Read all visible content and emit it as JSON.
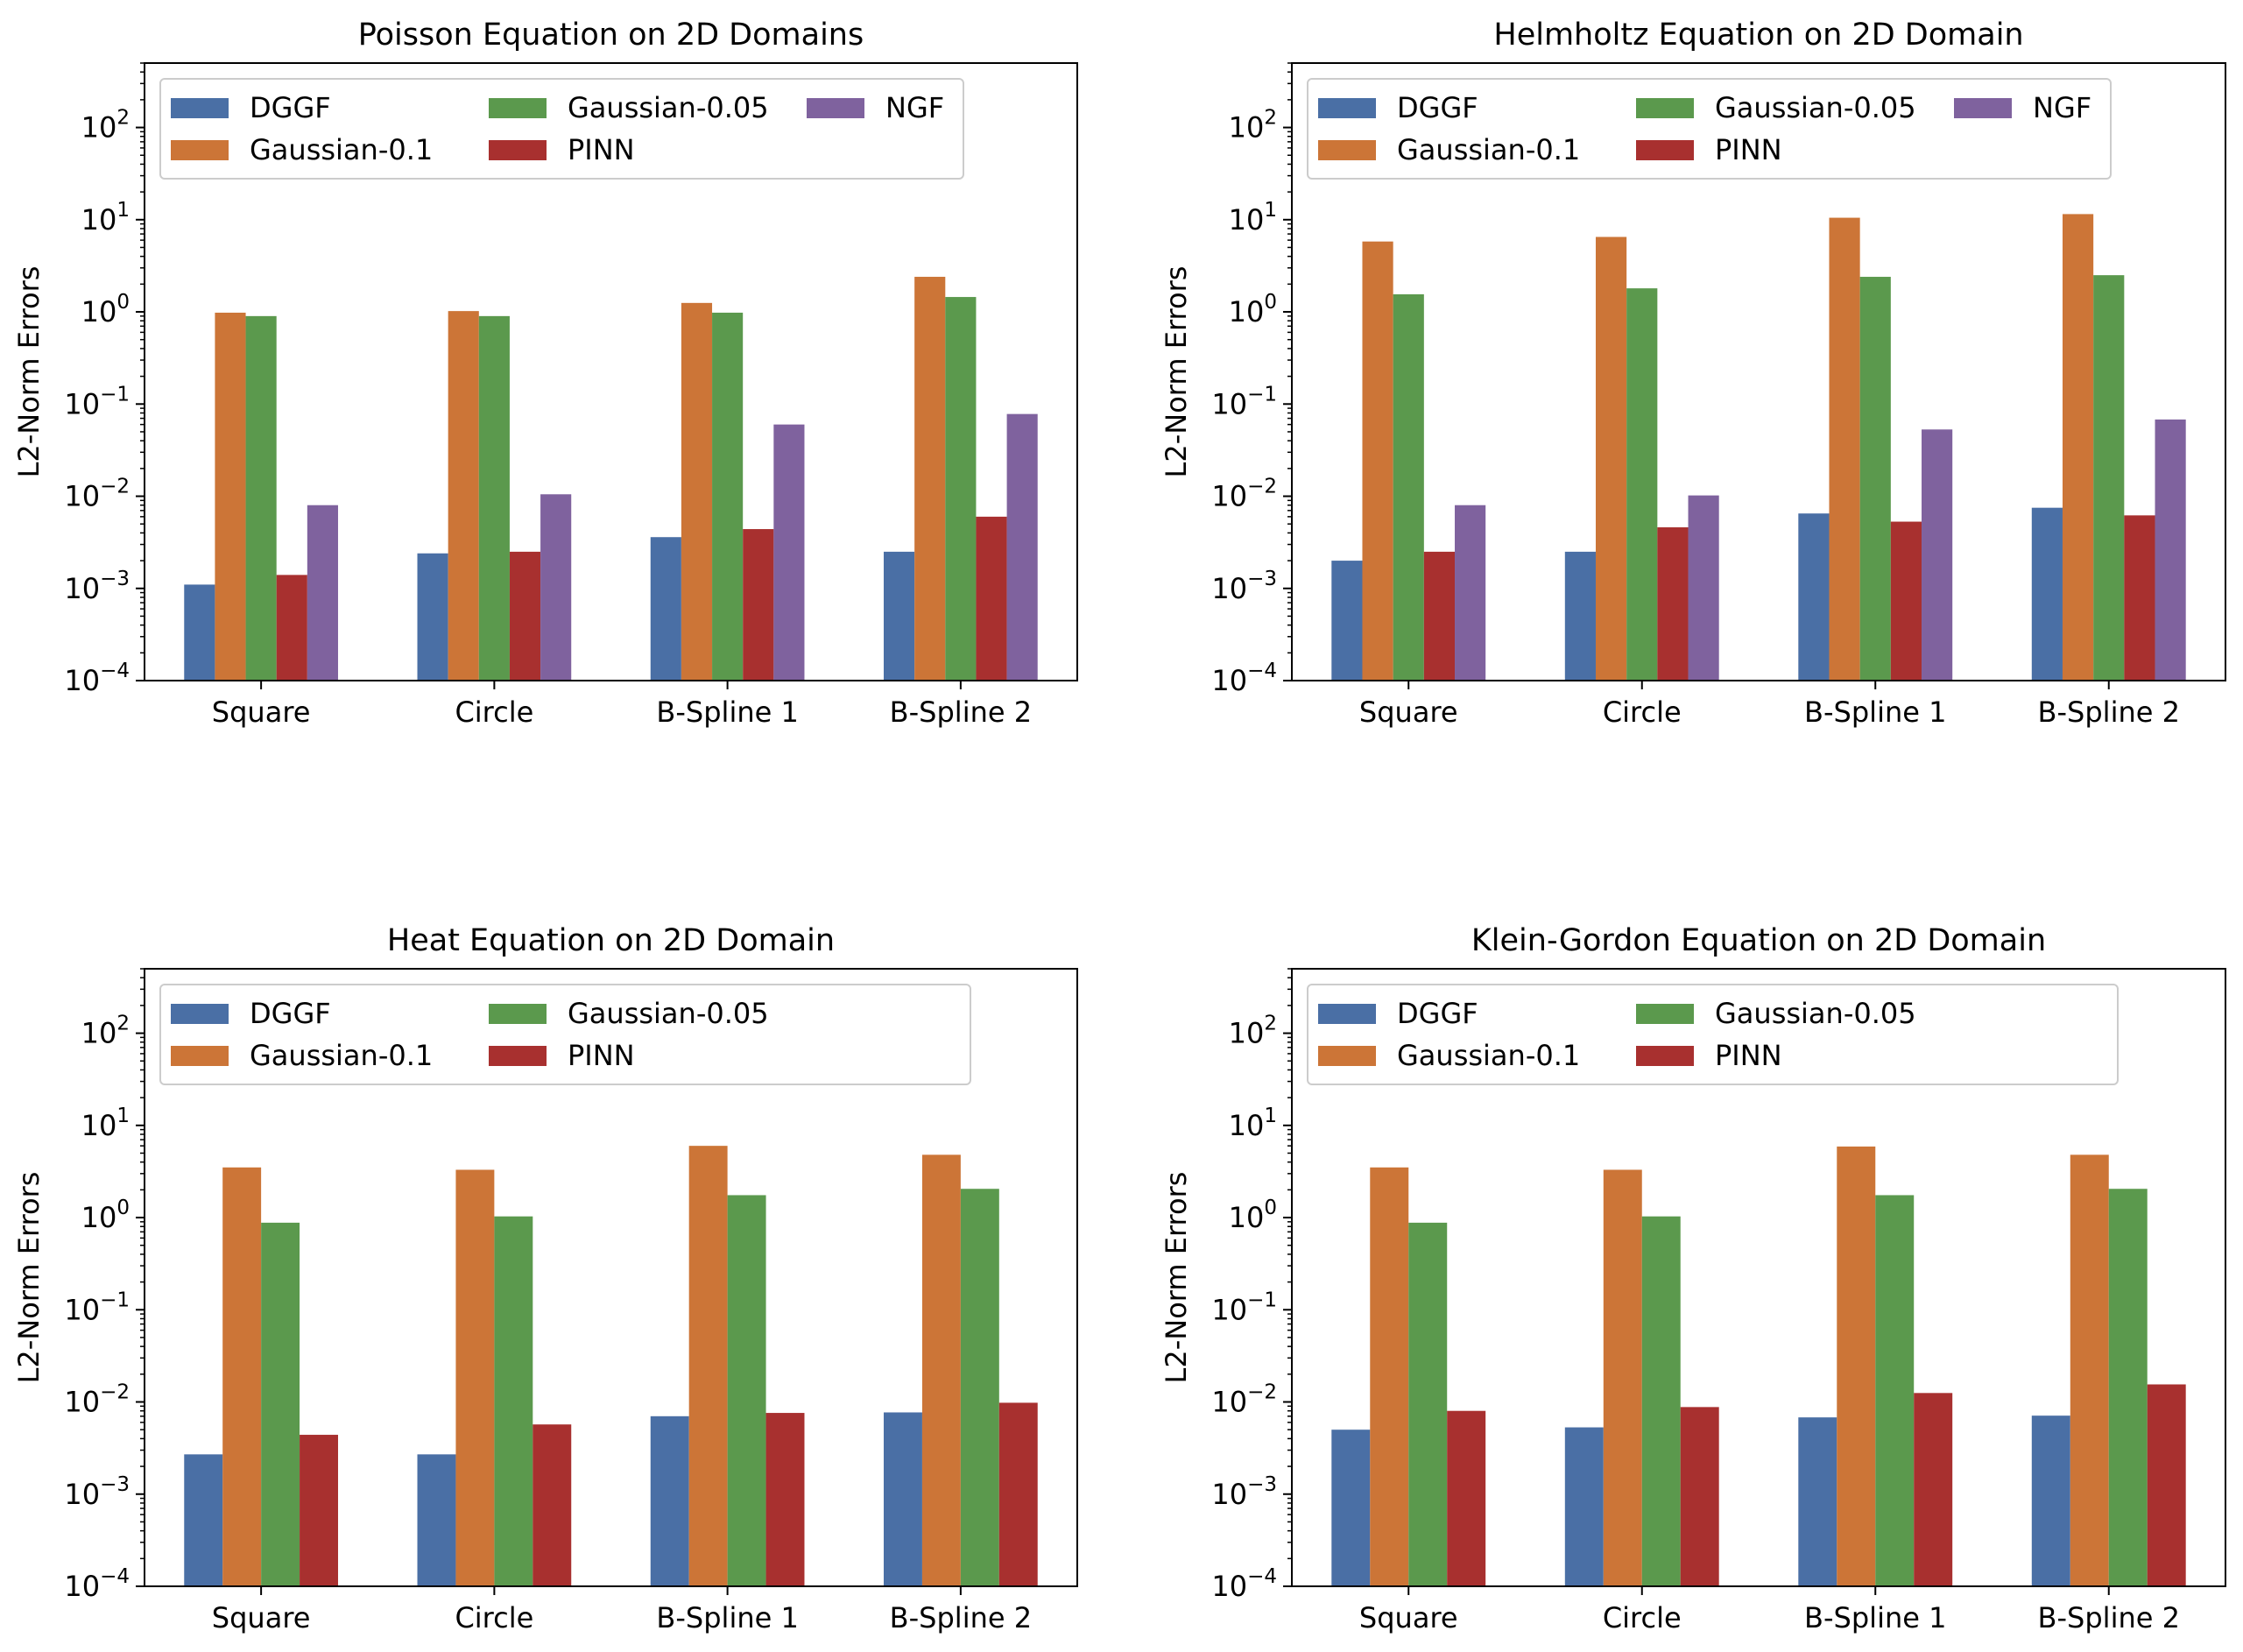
{
  "figure": {
    "background": "#ffffff"
  },
  "chart_data": [
    {
      "type": "bar",
      "scale": "log",
      "title": "Poisson Equation on 2D Domains",
      "xlabel": "",
      "ylabel": "L2-Norm Errors",
      "ylim": [
        0.0001,
        500
      ],
      "yticks": [
        -4,
        -3,
        -2,
        -1,
        0,
        1,
        2
      ],
      "legend_location": "upper-left",
      "legend_columns": 3,
      "categories": [
        "Square",
        "Circle",
        "B-Spline 1",
        "B-Spline 2"
      ],
      "series": [
        {
          "name": "DGGF",
          "color": "#4a6fa5",
          "values": [
            0.0011,
            0.0024,
            0.0036,
            0.0025
          ]
        },
        {
          "name": "Gaussian-0.1",
          "color": "#cc7537",
          "values": [
            0.98,
            1.02,
            1.25,
            2.4
          ]
        },
        {
          "name": "Gaussian-0.05",
          "color": "#5b994d",
          "values": [
            0.9,
            0.9,
            0.98,
            1.45
          ]
        },
        {
          "name": "PINN",
          "color": "#a8302f",
          "values": [
            0.0014,
            0.0025,
            0.0044,
            0.006
          ]
        },
        {
          "name": "NGF",
          "color": "#7f629e",
          "values": [
            0.008,
            0.0105,
            0.06,
            0.078
          ]
        }
      ]
    },
    {
      "type": "bar",
      "scale": "log",
      "title": "Helmholtz Equation on 2D Domain",
      "xlabel": "",
      "ylabel": "L2-Norm Errors",
      "ylim": [
        0.0001,
        500
      ],
      "yticks": [
        -4,
        -3,
        -2,
        -1,
        0,
        1,
        2
      ],
      "legend_location": "upper-left",
      "legend_columns": 3,
      "categories": [
        "Square",
        "Circle",
        "B-Spline 1",
        "B-Spline 2"
      ],
      "series": [
        {
          "name": "DGGF",
          "color": "#4a6fa5",
          "values": [
            0.002,
            0.0025,
            0.0065,
            0.0075
          ]
        },
        {
          "name": "Gaussian-0.1",
          "color": "#cc7537",
          "values": [
            5.8,
            6.5,
            10.5,
            11.5
          ]
        },
        {
          "name": "Gaussian-0.05",
          "color": "#5b994d",
          "values": [
            1.55,
            1.8,
            2.4,
            2.5
          ]
        },
        {
          "name": "PINN",
          "color": "#a8302f",
          "values": [
            0.0025,
            0.0046,
            0.0053,
            0.0062
          ]
        },
        {
          "name": "NGF",
          "color": "#7f629e",
          "values": [
            0.008,
            0.0102,
            0.053,
            0.068
          ]
        }
      ]
    },
    {
      "type": "bar",
      "scale": "log",
      "title": "Heat Equation on 2D Domain",
      "xlabel": "",
      "ylabel": "L2-Norm Errors",
      "ylim": [
        0.0001,
        500
      ],
      "yticks": [
        -4,
        -3,
        -2,
        -1,
        0,
        1,
        2
      ],
      "legend_location": "upper-left",
      "legend_columns": 3,
      "categories": [
        "Square",
        "Circle",
        "B-Spline 1",
        "B-Spline 2"
      ],
      "series": [
        {
          "name": "DGGF",
          "color": "#4a6fa5",
          "values": [
            0.0027,
            0.0027,
            0.007,
            0.0077
          ]
        },
        {
          "name": "Gaussian-0.1",
          "color": "#cc7537",
          "values": [
            3.5,
            3.3,
            6.0,
            4.8
          ]
        },
        {
          "name": "Gaussian-0.05",
          "color": "#5b994d",
          "values": [
            0.88,
            1.03,
            1.75,
            2.05
          ]
        },
        {
          "name": "PINN",
          "color": "#a8302f",
          "values": [
            0.0044,
            0.0057,
            0.0076,
            0.0098
          ]
        }
      ]
    },
    {
      "type": "bar",
      "scale": "log",
      "title": "Klein-Gordon Equation on 2D Domain",
      "xlabel": "",
      "ylabel": "L2-Norm Errors",
      "ylim": [
        0.0001,
        500
      ],
      "yticks": [
        -4,
        -3,
        -2,
        -1,
        0,
        1,
        2
      ],
      "legend_location": "upper-left",
      "legend_columns": 3,
      "categories": [
        "Square",
        "Circle",
        "B-Spline 1",
        "B-Spline 2"
      ],
      "series": [
        {
          "name": "DGGF",
          "color": "#4a6fa5",
          "values": [
            0.005,
            0.0053,
            0.0068,
            0.0071
          ]
        },
        {
          "name": "Gaussian-0.1",
          "color": "#cc7537",
          "values": [
            3.5,
            3.3,
            5.9,
            4.8
          ]
        },
        {
          "name": "Gaussian-0.05",
          "color": "#5b994d",
          "values": [
            0.88,
            1.03,
            1.75,
            2.05
          ]
        },
        {
          "name": "PINN",
          "color": "#a8302f",
          "values": [
            0.008,
            0.0088,
            0.0125,
            0.0155
          ]
        }
      ]
    }
  ]
}
